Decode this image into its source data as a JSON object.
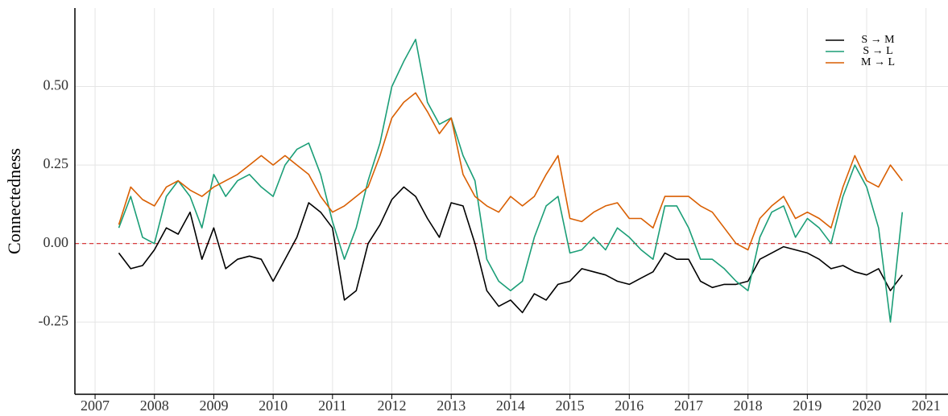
{
  "chart_data": {
    "type": "line",
    "y_label": "Connectedness",
    "x": [
      2007.4,
      2007.6,
      2007.8,
      2008.0,
      2008.2,
      2008.4,
      2008.6,
      2008.8,
      2009.0,
      2009.2,
      2009.4,
      2009.6,
      2009.8,
      2010.0,
      2010.2,
      2010.4,
      2010.6,
      2010.8,
      2011.0,
      2011.2,
      2011.4,
      2011.6,
      2011.8,
      2012.0,
      2012.2,
      2012.4,
      2012.6,
      2012.8,
      2013.0,
      2013.2,
      2013.4,
      2013.6,
      2013.8,
      2014.0,
      2014.2,
      2014.4,
      2014.6,
      2014.8,
      2015.0,
      2015.2,
      2015.4,
      2015.6,
      2015.8,
      2016.0,
      2016.2,
      2016.4,
      2016.6,
      2016.8,
      2017.0,
      2017.2,
      2017.4,
      2017.6,
      2017.8,
      2018.0,
      2018.2,
      2018.4,
      2018.6,
      2018.8,
      2019.0,
      2019.2,
      2019.4,
      2019.6,
      2019.8,
      2020.0,
      2020.2,
      2020.4,
      2020.6
    ],
    "series": [
      {
        "name": "S → M",
        "color": "#000000",
        "values": [
          -0.03,
          -0.08,
          -0.07,
          -0.02,
          0.05,
          0.03,
          0.1,
          -0.05,
          0.05,
          -0.08,
          -0.05,
          -0.04,
          -0.05,
          -0.12,
          -0.05,
          0.02,
          0.13,
          0.1,
          0.05,
          -0.18,
          -0.15,
          0.0,
          0.06,
          0.14,
          0.18,
          0.15,
          0.08,
          0.02,
          0.13,
          0.12,
          0.0,
          -0.15,
          -0.2,
          -0.18,
          -0.22,
          -0.16,
          -0.18,
          -0.13,
          -0.12,
          -0.08,
          -0.09,
          -0.1,
          -0.12,
          -0.13,
          -0.11,
          -0.09,
          -0.03,
          -0.05,
          -0.05,
          -0.12,
          -0.14,
          -0.13,
          -0.13,
          -0.12,
          -0.05,
          -0.03,
          -0.01,
          -0.02,
          -0.03,
          -0.05,
          -0.08,
          -0.07,
          -0.09,
          -0.1,
          -0.08,
          -0.15,
          -0.1
        ]
      },
      {
        "name": "S → L",
        "color": "#1b9e77",
        "values": [
          0.05,
          0.15,
          0.02,
          0.0,
          0.15,
          0.2,
          0.15,
          0.05,
          0.22,
          0.15,
          0.2,
          0.22,
          0.18,
          0.15,
          0.25,
          0.3,
          0.32,
          0.22,
          0.07,
          -0.05,
          0.05,
          0.2,
          0.32,
          0.5,
          0.58,
          0.65,
          0.45,
          0.38,
          0.4,
          0.28,
          0.2,
          -0.05,
          -0.12,
          -0.15,
          -0.12,
          0.02,
          0.12,
          0.15,
          -0.03,
          -0.02,
          0.02,
          -0.02,
          0.05,
          0.02,
          -0.02,
          -0.05,
          0.12,
          0.12,
          0.05,
          -0.05,
          -0.05,
          -0.08,
          -0.12,
          -0.15,
          0.02,
          0.1,
          0.12,
          0.02,
          0.08,
          0.05,
          0.0,
          0.15,
          0.25,
          0.18,
          0.05,
          -0.25,
          0.1
        ]
      },
      {
        "name": "M → L",
        "color": "#d95f02",
        "values": [
          0.06,
          0.18,
          0.14,
          0.12,
          0.18,
          0.2,
          0.17,
          0.15,
          0.18,
          0.2,
          0.22,
          0.25,
          0.28,
          0.25,
          0.28,
          0.25,
          0.22,
          0.15,
          0.1,
          0.12,
          0.15,
          0.18,
          0.28,
          0.4,
          0.45,
          0.48,
          0.42,
          0.35,
          0.4,
          0.22,
          0.15,
          0.12,
          0.1,
          0.15,
          0.12,
          0.15,
          0.22,
          0.28,
          0.08,
          0.07,
          0.1,
          0.12,
          0.13,
          0.08,
          0.08,
          0.05,
          0.15,
          0.15,
          0.15,
          0.12,
          0.1,
          0.05,
          0.0,
          -0.02,
          0.08,
          0.12,
          0.15,
          0.08,
          0.1,
          0.08,
          0.05,
          0.18,
          0.28,
          0.2,
          0.18,
          0.25,
          0.2
        ]
      }
    ],
    "xlim": [
      2006.66,
      2021.37
    ],
    "xticks": [
      2007,
      2008,
      2009,
      2010,
      2011,
      2012,
      2013,
      2014,
      2015,
      2016,
      2017,
      2018,
      2019,
      2020,
      2021
    ],
    "ylim": [
      -0.48,
      0.75
    ],
    "yticks": [
      {
        "value": -0.25,
        "label": "-0.25"
      },
      {
        "value": 0,
        "label": "0.00"
      },
      0.25,
      {
        "value": 0.5,
        "label": "0.50"
      }
    ],
    "hline": {
      "value": 0,
      "color": "#d62728"
    },
    "grid": true,
    "legend": "top-right"
  }
}
